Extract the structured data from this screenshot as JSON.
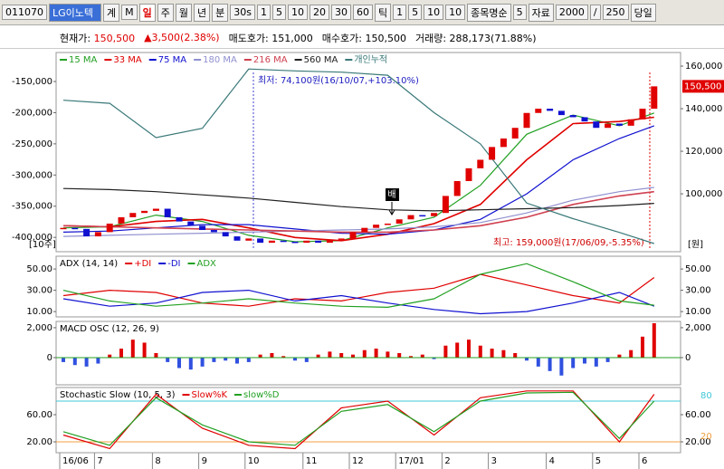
{
  "toolbar": {
    "code": "011070",
    "name": "LG이노텍",
    "items": [
      "계",
      "M",
      "일",
      "주",
      "월",
      "년",
      "분",
      "30s",
      "1",
      "5",
      "10",
      "20",
      "30",
      "60",
      "틱",
      "1",
      "5",
      "10",
      "10",
      "종목명순",
      "5",
      "자료",
      "2000",
      "/",
      "250",
      "당일"
    ]
  },
  "info": [
    {
      "label": "현재가:",
      "value": "150,500"
    },
    {
      "label": "",
      "value": "3,500(2.38%)"
    },
    {
      "label": "매도호가:",
      "value": "151,000"
    },
    {
      "label": "매수호가:",
      "value": "150,500"
    },
    {
      "label": "거래량:",
      "value": "288,173(71.88%)"
    }
  ],
  "annotations": {
    "low": "최저: 74,100원(16/10/07,+103.10%)",
    "high": "최고: 159,000원(17/06/09,-5.35%)",
    "signal": "배"
  },
  "chart_data": [
    {
      "type": "candlestick",
      "y_label": "[10주]",
      "y2_label": "[원]",
      "last_price_label": "150,500",
      "ylim": [
        -423000,
        -103500
      ],
      "yticks": [
        {
          "value": -150000,
          "label": "-150,000"
        },
        {
          "value": -200000,
          "label": "-200,000"
        },
        {
          "value": -250000,
          "label": "-250,000"
        },
        {
          "value": -300000,
          "label": "-300,000"
        },
        {
          "value": -350000,
          "label": "-350,000"
        },
        {
          "value": -400000,
          "label": "-400,000"
        }
      ],
      "y2lim": [
        72800,
        166400
      ],
      "y2ticks": [
        {
          "value": 160000,
          "label": "160,000"
        },
        {
          "value": 140000,
          "label": "140,000"
        },
        {
          "value": 120000,
          "label": "120,000"
        },
        {
          "value": 100000,
          "label": "100,000"
        }
      ],
      "values": [
        84000,
        83500,
        80000,
        82000,
        86000,
        89000,
        91000,
        92000,
        93000,
        89000,
        87000,
        85000,
        83000,
        82000,
        80000,
        78000,
        79000,
        77000,
        78000,
        77500,
        77000,
        78000,
        77000,
        78500,
        79000,
        82000,
        84000,
        85500,
        86000,
        88000,
        90000,
        89500,
        91000,
        99000,
        106000,
        112000,
        116000,
        122000,
        126000,
        131000,
        138000,
        140000,
        139000,
        137000,
        136000,
        134000,
        131000,
        133000,
        132000,
        135000,
        140000,
        150500
      ],
      "series": [
        {
          "name": "15 MA",
          "color": "#22a022",
          "axis": "y2",
          "x": [
            0,
            4,
            8,
            12,
            16,
            20,
            24,
            28,
            32,
            36,
            40,
            44,
            48,
            51
          ],
          "values": [
            84000,
            84500,
            90000,
            87000,
            80500,
            77500,
            78000,
            84000,
            89000,
            104000,
            128000,
            137000,
            132000,
            138000
          ]
        },
        {
          "name": "33 MA",
          "color": "#e00000",
          "axis": "y2",
          "x": [
            0,
            4,
            8,
            12,
            16,
            20,
            24,
            28,
            32,
            36,
            40,
            44,
            48,
            51
          ],
          "values": [
            85000,
            84500,
            87000,
            88000,
            84000,
            79500,
            78000,
            81000,
            86000,
            95000,
            116000,
            133000,
            134000,
            136000
          ]
        },
        {
          "name": "75 MA",
          "color": "#1010d0",
          "axis": "y2",
          "x": [
            0,
            4,
            8,
            12,
            16,
            20,
            24,
            28,
            32,
            36,
            40,
            44,
            48,
            51
          ],
          "values": [
            82000,
            82500,
            84000,
            85500,
            85500,
            83500,
            81500,
            81000,
            83000,
            88000,
            100000,
            116000,
            126000,
            132000
          ]
        },
        {
          "name": "180 MA",
          "color": "#9090d0",
          "axis": "y2",
          "x": [
            0,
            4,
            8,
            12,
            16,
            20,
            24,
            28,
            32,
            36,
            40,
            44,
            48,
            51
          ],
          "values": [
            80000,
            80500,
            81000,
            81500,
            82000,
            82500,
            83000,
            83500,
            84500,
            86500,
            91000,
            97000,
            101000,
            103000
          ]
        },
        {
          "name": "216 MA",
          "color": "#d04050",
          "axis": "y2",
          "x": [
            0,
            4,
            8,
            12,
            16,
            20,
            24,
            28,
            32,
            36,
            40,
            44,
            48,
            51
          ],
          "values": [
            85000,
            84500,
            84000,
            83500,
            83000,
            82500,
            82000,
            82000,
            83000,
            85000,
            89000,
            95000,
            99000,
            101000
          ]
        },
        {
          "name": "560 MA",
          "color": "#202020",
          "axis": "y2",
          "x": [
            0,
            4,
            8,
            12,
            16,
            20,
            24,
            28,
            32,
            36,
            40,
            44,
            48,
            51
          ],
          "values": [
            102500,
            102000,
            101000,
            99500,
            98000,
            96000,
            94000,
            92500,
            92000,
            92500,
            93000,
            93500,
            94500,
            95500
          ]
        },
        {
          "name": "개인누적",
          "color": "#3a7878",
          "axis": "y",
          "x": [
            0,
            4,
            8,
            12,
            16,
            20,
            24,
            28,
            32,
            36,
            40,
            44,
            48,
            51
          ],
          "values": [
            -180000,
            -185000,
            -240000,
            -225000,
            -130000,
            -133000,
            -135000,
            -140000,
            -200000,
            -250000,
            -345000,
            -370000,
            -392000,
            -410000
          ]
        }
      ]
    },
    {
      "type": "line",
      "title": "ADX (14, 14)",
      "ylim": [
        5,
        62
      ],
      "yticks": [
        {
          "value": 50,
          "label": "50.00"
        },
        {
          "value": 30,
          "label": "30.00"
        },
        {
          "value": 10,
          "label": "10.00"
        }
      ],
      "y2lim": [
        5,
        62
      ],
      "y2ticks": [
        {
          "value": 50,
          "label": "50.00"
        },
        {
          "value": 30,
          "label": "30.00"
        },
        {
          "value": 10,
          "label": "10.00"
        }
      ],
      "series": [
        {
          "name": "+DI",
          "color": "#e00000",
          "x": [
            0,
            4,
            8,
            12,
            16,
            20,
            24,
            28,
            32,
            36,
            40,
            44,
            48,
            51
          ],
          "values": [
            25,
            30,
            28,
            18,
            15,
            22,
            20,
            28,
            32,
            45,
            35,
            25,
            18,
            42
          ]
        },
        {
          "name": "-DI",
          "color": "#1010d0",
          "x": [
            0,
            4,
            8,
            12,
            16,
            20,
            24,
            28,
            32,
            36,
            40,
            44,
            48,
            51
          ],
          "values": [
            22,
            15,
            18,
            28,
            30,
            20,
            25,
            18,
            12,
            8,
            10,
            18,
            28,
            15
          ]
        },
        {
          "name": "ADX",
          "color": "#22a022",
          "x": [
            0,
            4,
            8,
            12,
            16,
            20,
            24,
            28,
            32,
            36,
            40,
            44,
            48,
            51
          ],
          "values": [
            30,
            20,
            15,
            18,
            22,
            18,
            15,
            14,
            22,
            45,
            55,
            38,
            20,
            16
          ]
        }
      ]
    },
    {
      "type": "bar",
      "title": "MACD OSC (12, 26, 9)",
      "ylim": [
        -1820,
        2420
      ],
      "yticks": [
        {
          "value": 2000,
          "label": "2,000"
        },
        0
      ],
      "y2lim": [
        -1820,
        2420
      ],
      "y2ticks": [
        {
          "value": 2000,
          "label": "2,000"
        },
        0
      ],
      "values": [
        -300,
        -500,
        -600,
        -400,
        200,
        600,
        1200,
        1000,
        300,
        -300,
        -700,
        -800,
        -600,
        -300,
        -200,
        -400,
        -300,
        200,
        300,
        100,
        -200,
        -300,
        200,
        400,
        300,
        200,
        500,
        600,
        400,
        300,
        100,
        200,
        -100,
        800,
        1000,
        1200,
        800,
        600,
        500,
        300,
        -200,
        -600,
        -900,
        -1200,
        -700,
        -400,
        -600,
        -300,
        200,
        500,
        1400,
        2300
      ]
    },
    {
      "type": "line",
      "title": "Stochastic Slow (10, 5, 3)",
      "ylim": [
        4,
        100
      ],
      "yticks": [
        {
          "value": 60,
          "label": "60.00"
        },
        {
          "value": 20,
          "label": "20.00"
        }
      ],
      "y2lim": [
        4,
        100
      ],
      "y2ticks": [
        {
          "value": 60,
          "label": "60.00"
        },
        {
          "value": 20,
          "label": "20.00"
        }
      ],
      "ref_lines": [
        {
          "value": 80,
          "label": "80",
          "color": "#40c8d8"
        },
        {
          "value": 20,
          "label": "20",
          "color": "#f0a040"
        }
      ],
      "categories": [
        "16/06",
        null,
        null,
        "7",
        null,
        null,
        null,
        null,
        "8",
        null,
        null,
        null,
        "9",
        null,
        null,
        null,
        "10",
        null,
        null,
        null,
        null,
        "11",
        null,
        null,
        null,
        "12",
        null,
        null,
        null,
        "17/01",
        null,
        null,
        null,
        "2",
        null,
        null,
        null,
        "3",
        null,
        null,
        null,
        null,
        "4",
        null,
        null,
        null,
        "5",
        null,
        null,
        null,
        "6",
        null
      ],
      "series": [
        {
          "name": "Slow%K",
          "color": "#e00000",
          "x": [
            0,
            4,
            8,
            12,
            16,
            20,
            24,
            28,
            32,
            36,
            40,
            44,
            48,
            51
          ],
          "values": [
            30,
            10,
            90,
            40,
            15,
            10,
            70,
            80,
            30,
            85,
            95,
            95,
            20,
            90
          ]
        },
        {
          "name": "slow%D",
          "color": "#22a022",
          "x": [
            0,
            4,
            8,
            12,
            16,
            20,
            24,
            28,
            32,
            36,
            40,
            44,
            48,
            51
          ],
          "values": [
            35,
            15,
            85,
            45,
            20,
            15,
            65,
            75,
            35,
            80,
            92,
            93,
            25,
            80
          ]
        }
      ]
    }
  ]
}
